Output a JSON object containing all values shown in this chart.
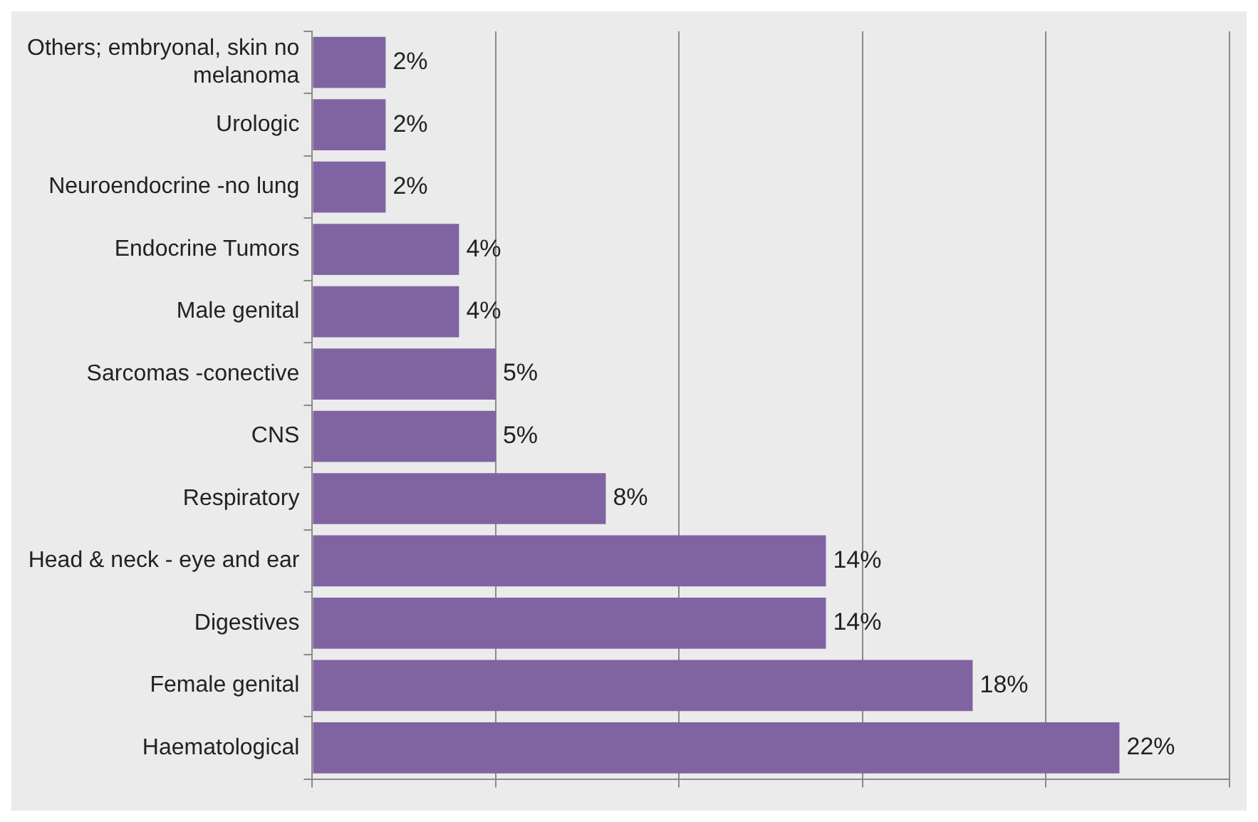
{
  "chart_data": {
    "type": "bar",
    "orientation": "horizontal",
    "categories": [
      "Others; embryonal, skin no melanoma",
      "Urologic",
      "Neuroendocrine -no lung",
      "Endocrine Tumors",
      "Male genital",
      "Sarcomas -conective",
      "CNS",
      "Respiratory",
      "Head & neck - eye and ear",
      "Digestives",
      "Female genital",
      "Haematological"
    ],
    "values": [
      2,
      2,
      2,
      4,
      4,
      5,
      5,
      8,
      14,
      14,
      18,
      22
    ],
    "value_labels": [
      "2%",
      "2%",
      "2%",
      "4%",
      "4%",
      "5%",
      "5%",
      "8%",
      "14%",
      "14%",
      "18%",
      "22%"
    ],
    "color": "#8064a2",
    "grid": "x",
    "tick_labels": "y",
    "legend": false
  }
}
